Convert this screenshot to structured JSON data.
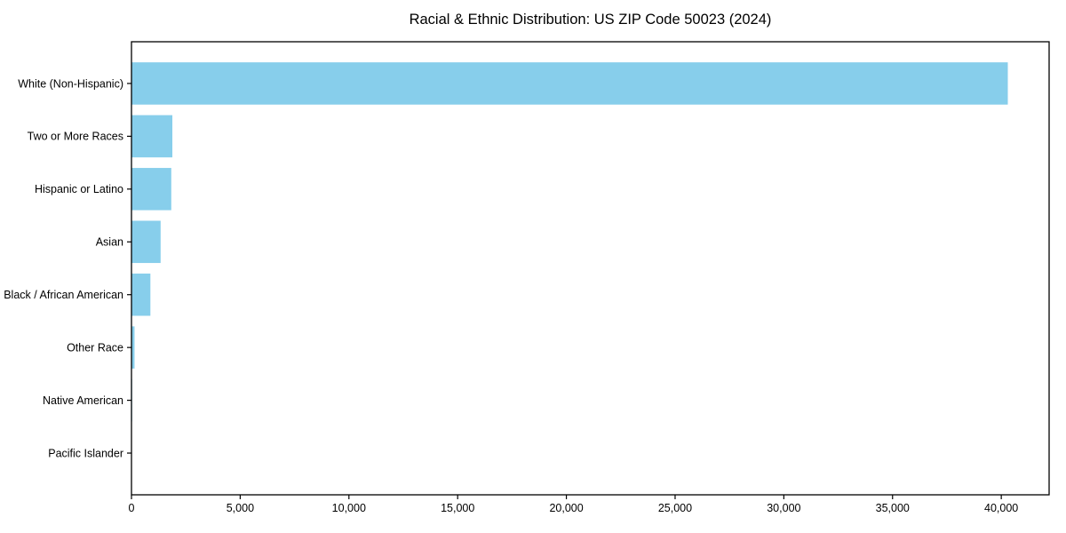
{
  "window": {
    "background": "#ffffff"
  },
  "chart_data": {
    "type": "bar",
    "orientation": "horizontal",
    "title": "Racial & Ethnic Distribution: US ZIP Code 50023 (2024)",
    "categories": [
      "White (Non-Hispanic)",
      "Two or More Races",
      "Hispanic or Latino",
      "Asian",
      "Black / African American",
      "Other Race",
      "Native American",
      "Pacific Islander"
    ],
    "values": [
      40300,
      1880,
      1830,
      1340,
      870,
      140,
      30,
      10
    ],
    "xlabel": "",
    "ylabel": "",
    "xlim": [
      0,
      42200
    ],
    "x_ticks": [
      0,
      5000,
      10000,
      15000,
      20000,
      25000,
      30000,
      35000,
      40000
    ],
    "x_tick_labels": [
      "0",
      "5,000",
      "10,000",
      "15,000",
      "20,000",
      "25,000",
      "30,000",
      "35,000",
      "40,000"
    ],
    "grid": false,
    "legend": false,
    "bar_color": "#87CEEB",
    "axis_color": "#000000",
    "text_color": "#000000"
  }
}
